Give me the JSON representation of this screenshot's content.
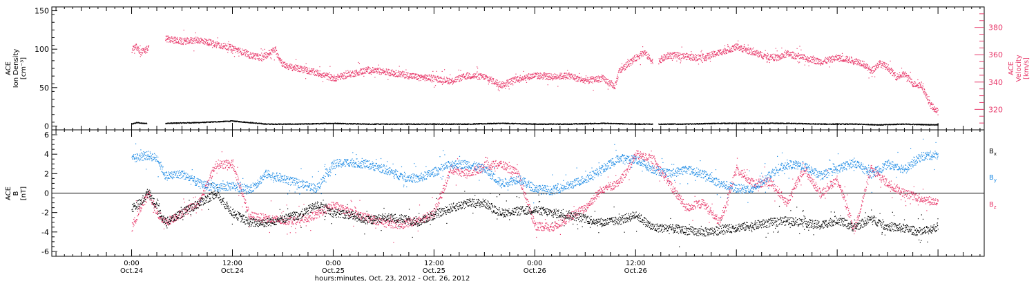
{
  "chart_data": [
    {
      "type": "scatter",
      "panel": "top",
      "left_axis": {
        "label_lines": [
          "ACE",
          "Ion Density",
          "[cm⁻³]"
        ],
        "ticks": [
          0,
          50,
          100,
          150
        ],
        "ylim": [
          -5,
          155
        ]
      },
      "right_axis": {
        "label_lines": [
          "ACE",
          "Velocity",
          "[km/s]"
        ],
        "ticks": [
          320,
          340,
          360,
          380
        ],
        "ylim": [
          305,
          395
        ]
      },
      "series": [
        {
          "axis": "left",
          "color": "#000000",
          "segments": [
            {
              "hours": [
                0,
                0.6,
                1.2,
                1.8
              ],
              "values": [
                3,
                5,
                4,
                4
              ]
            },
            {
              "hours": [
                4,
                8,
                12,
                16,
                20,
                24,
                28,
                32,
                36,
                40,
                44,
                48,
                52,
                56,
                60,
                62
              ],
              "values": [
                4,
                5,
                7,
                3,
                3,
                4,
                3,
                3,
                3,
                3,
                4,
                3,
                3,
                4,
                3,
                3
              ]
            },
            {
              "hours": [
                62.7,
                66,
                70,
                74,
                78,
                82,
                86,
                89.2,
                91.5,
                96
              ],
              "values": [
                3,
                3,
                4,
                4,
                4,
                3,
                3,
                2,
                3,
                2
              ]
            }
          ]
        },
        {
          "axis": "right",
          "color": "#e8386a",
          "segments": [
            {
              "hours": [
                0,
                0.5,
                1,
                1.5,
                2
              ],
              "values": [
                364,
                366,
                362,
                363,
                365
              ]
            },
            {
              "hours": [
                4,
                6,
                8,
                10,
                12,
                14,
                15.5,
                16,
                17,
                18,
                19,
                20,
                22,
                24,
                26,
                28,
                30,
                32,
                34,
                36,
                38,
                40,
                42,
                44,
                46,
                48,
                50,
                52,
                54,
                56,
                57.5,
                58,
                59,
                60,
                61,
                62
              ],
              "values": [
                372,
                370,
                371,
                368,
                365,
                360,
                358,
                360,
                364,
                353,
                351,
                350,
                347,
                343,
                346,
                349,
                348,
                346,
                344,
                343,
                341,
                345,
                344,
                338,
                343,
                345,
                344,
                345,
                341,
                343,
                337,
                348,
                353,
                358,
                362,
                355
              ]
            },
            {
              "hours": [
                62.7,
                64,
                66,
                68,
                70,
                72,
                74,
                75.5,
                77,
                78,
                80,
                82,
                84,
                86,
                87,
                88,
                89,
                90,
                91,
                92,
                93,
                94,
                95,
                96
              ],
              "values": [
                356,
                360,
                359,
                358,
                362,
                366,
                362,
                359,
                358,
                361,
                358,
                355,
                358,
                356,
                354,
                348,
                354,
                351,
                344,
                346,
                339,
                338,
                324,
                318
              ]
            }
          ]
        }
      ]
    },
    {
      "type": "scatter",
      "panel": "bottom",
      "left_axis": {
        "label_lines": [
          "ACE",
          "B",
          "[nT]"
        ],
        "ticks": [
          -6,
          -4,
          -2,
          0,
          2,
          4,
          6
        ],
        "ylim": [
          -6.5,
          6.5
        ]
      },
      "legend": [
        "Bx",
        "By",
        "Bz"
      ],
      "legend_placement": "right",
      "series": [
        {
          "name": "Bx",
          "color": "#000000",
          "hours": [
            0,
            1,
            2,
            3,
            4,
            6,
            8,
            10,
            12,
            14,
            16,
            18,
            20,
            22,
            24,
            26,
            28,
            30,
            32,
            34,
            36,
            38,
            40,
            42,
            44,
            46,
            48,
            50,
            52,
            54,
            56,
            58,
            60,
            62,
            64,
            66,
            68,
            70,
            72,
            74,
            76,
            78,
            80,
            82,
            84,
            86,
            88,
            90,
            92,
            94,
            96
          ],
          "values": [
            -1.5,
            -1.0,
            0.2,
            -1.5,
            -3.0,
            -2.0,
            -1.0,
            0.0,
            -2.0,
            -3.0,
            -3.0,
            -2.6,
            -2.2,
            -1.2,
            -2.0,
            -2.2,
            -2.8,
            -2.5,
            -2.6,
            -3.0,
            -2.2,
            -1.5,
            -1.0,
            -1.0,
            -2.0,
            -1.8,
            -1.7,
            -2.0,
            -2.2,
            -2.6,
            -3.0,
            -2.8,
            -2.2,
            -3.5,
            -3.6,
            -3.8,
            -4.0,
            -3.8,
            -3.5,
            -3.3,
            -3.0,
            -2.8,
            -3.0,
            -3.3,
            -2.7,
            -3.5,
            -2.6,
            -3.4,
            -3.6,
            -4.0,
            -3.4
          ]
        },
        {
          "name": "By",
          "color": "#1f8ce5",
          "hours": [
            0,
            1,
            2,
            3,
            4,
            6,
            8,
            10,
            12,
            14,
            16,
            18,
            20,
            22,
            24,
            26,
            28,
            30,
            32,
            34,
            36,
            38,
            40,
            42,
            44,
            46,
            48,
            50,
            52,
            54,
            56,
            58,
            60,
            62,
            64,
            66,
            68,
            70,
            72,
            74,
            76,
            78,
            80,
            82,
            84,
            86,
            88,
            90,
            92,
            94,
            96
          ],
          "values": [
            3.5,
            3.8,
            3.9,
            3.6,
            1.8,
            2.0,
            1.0,
            0.6,
            0.8,
            0.3,
            2.0,
            1.5,
            1.0,
            0.5,
            3.0,
            3.2,
            3.0,
            2.5,
            1.8,
            1.5,
            2.2,
            3.0,
            3.0,
            2.5,
            1.0,
            1.5,
            0.5,
            0.3,
            0.8,
            1.5,
            2.5,
            3.6,
            3.5,
            2.5,
            2.0,
            2.5,
            2.0,
            1.0,
            0.5,
            0.4,
            2.0,
            3.0,
            2.8,
            1.8,
            2.5,
            3.2,
            2.0,
            3.0,
            2.5,
            3.8,
            4.0
          ]
        },
        {
          "name": "Bz",
          "color": "#e8386a",
          "hours": [
            0,
            1,
            2,
            3,
            4,
            6,
            8,
            10,
            12,
            14,
            16,
            18,
            20,
            22,
            24,
            26,
            28,
            30,
            32,
            34,
            36,
            38,
            40,
            42,
            44,
            46,
            48,
            50,
            52,
            54,
            56,
            58,
            60,
            62,
            64,
            66,
            68,
            70,
            72,
            74,
            76,
            78,
            80,
            82,
            84,
            86,
            88,
            90,
            92,
            94,
            96
          ],
          "values": [
            -3.5,
            -1.5,
            0.0,
            -2.0,
            -3.0,
            -2.0,
            -1.0,
            3.0,
            3.0,
            -2.3,
            -2.6,
            -2.8,
            -2.7,
            -2.2,
            -1.2,
            -2.0,
            -2.5,
            -3.0,
            -3.2,
            -2.8,
            -2.0,
            2.5,
            2.0,
            2.8,
            3.0,
            2.0,
            -3.3,
            -3.5,
            -2.5,
            -1.5,
            0.5,
            1.0,
            4.0,
            3.5,
            1.0,
            -1.5,
            -1.0,
            -3.0,
            2.5,
            1.0,
            1.2,
            -1.0,
            2.5,
            0.0,
            1.5,
            -3.8,
            2.5,
            1.0,
            0.0,
            -0.5,
            -1.0
          ]
        }
      ]
    }
  ],
  "x_axis": {
    "range_hours": [
      -9.5,
      101.5
    ],
    "major_ticks": [
      {
        "hours": 0,
        "time": "0:00",
        "date": "Oct.24"
      },
      {
        "hours": 12,
        "time": "12:00",
        "date": "Oct.24"
      },
      {
        "hours": 24,
        "time": "0:00",
        "date": "Oct.25"
      },
      {
        "hours": 36,
        "time": "12:00",
        "date": "Oct.25"
      },
      {
        "hours": 48,
        "time": "0:00",
        "date": "Oct.26"
      },
      {
        "hours": 60,
        "time": "12:00",
        "date": "Oct.26"
      }
    ],
    "title": "hours:minutes, Oct. 23, 2012 - Oct. 26, 2012"
  }
}
